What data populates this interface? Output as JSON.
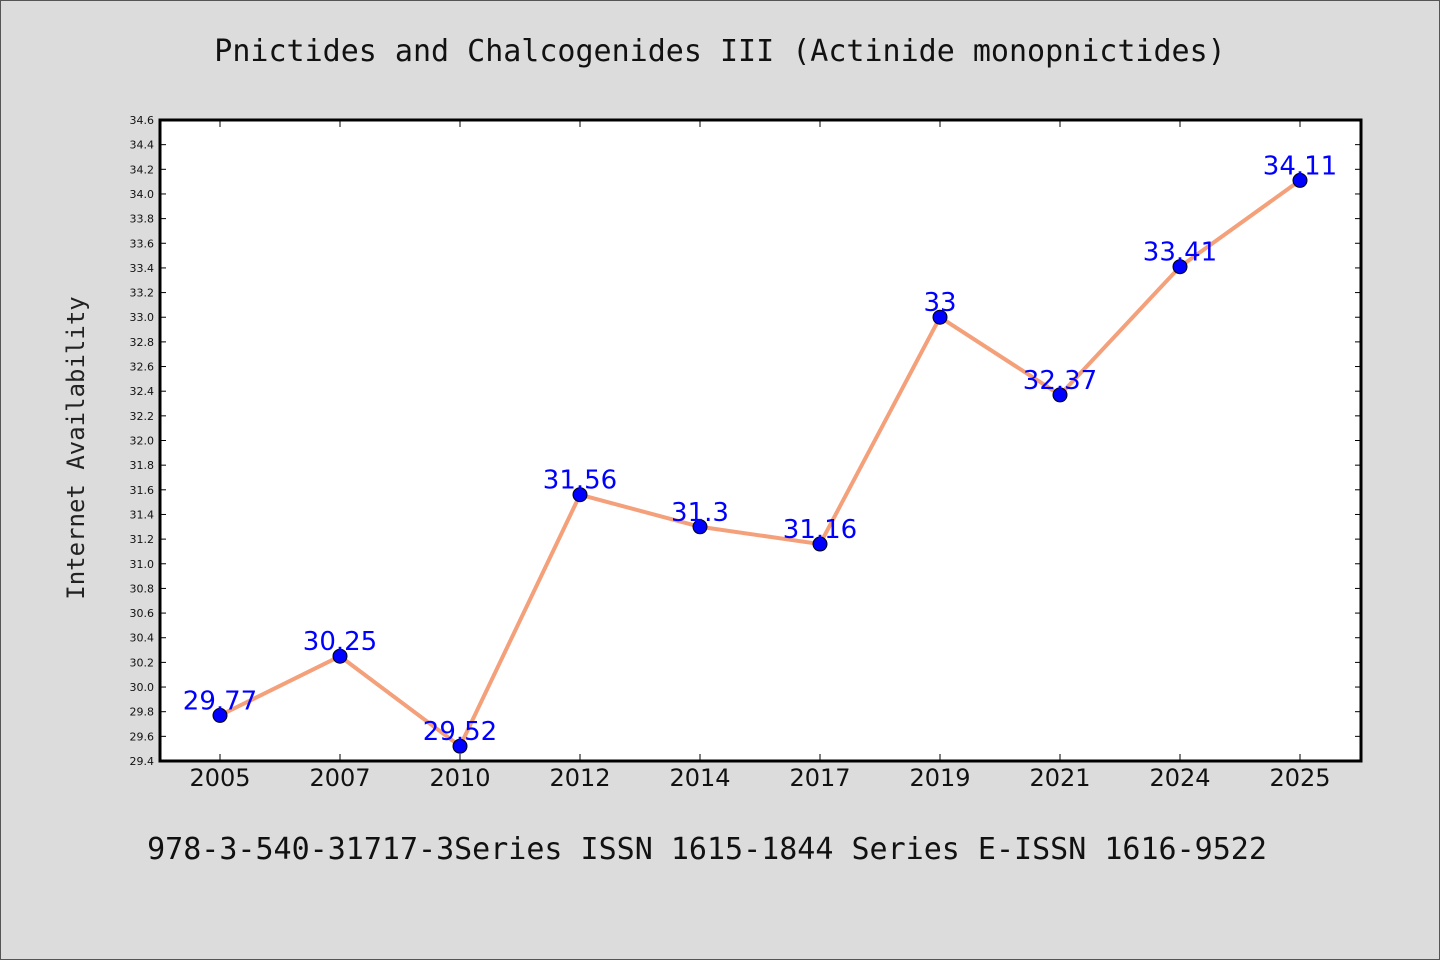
{
  "page": {
    "title": "Pnictides and Chalcogenides III (Actinide monopnictides)",
    "footer": "978-3-540-31717-3Series ISSN 1615-1844 Series E-ISSN 1616-9522"
  },
  "colors": {
    "background": "#dcdcdc",
    "plot_background": "#ffffff",
    "line": "#f4a07a",
    "marker": "#0000ff",
    "data_label": "#0000ff"
  },
  "chart_data": {
    "type": "line",
    "title": "Pnictides and Chalcogenides III (Actinide monopnictides)",
    "xlabel": "",
    "ylabel": "Internet Availability",
    "categories": [
      "2005",
      "2007",
      "2010",
      "2012",
      "2014",
      "2017",
      "2019",
      "2021",
      "2024",
      "2025"
    ],
    "values": [
      29.77,
      30.25,
      29.52,
      31.56,
      31.3,
      31.16,
      33,
      32.37,
      33.41,
      34.11
    ],
    "data_labels": [
      "29.77",
      "30.25",
      "29.52",
      "31.56",
      "31.3",
      "31.16",
      "33",
      "32.37",
      "33.41",
      "34.11"
    ],
    "ylim": [
      29.4,
      34.6
    ],
    "yticks": [
      "29.4",
      "29.6",
      "29.8",
      "30.0",
      "30.2",
      "30.4",
      "30.6",
      "30.8",
      "31.0",
      "31.2",
      "31.4",
      "31.6",
      "31.8",
      "32.0",
      "32.2",
      "32.4",
      "32.6",
      "32.8",
      "33.0",
      "33.2",
      "33.4",
      "33.6",
      "33.8",
      "34.0",
      "34.2",
      "34.4",
      "34.6"
    ],
    "grid": false,
    "legend": "none"
  }
}
